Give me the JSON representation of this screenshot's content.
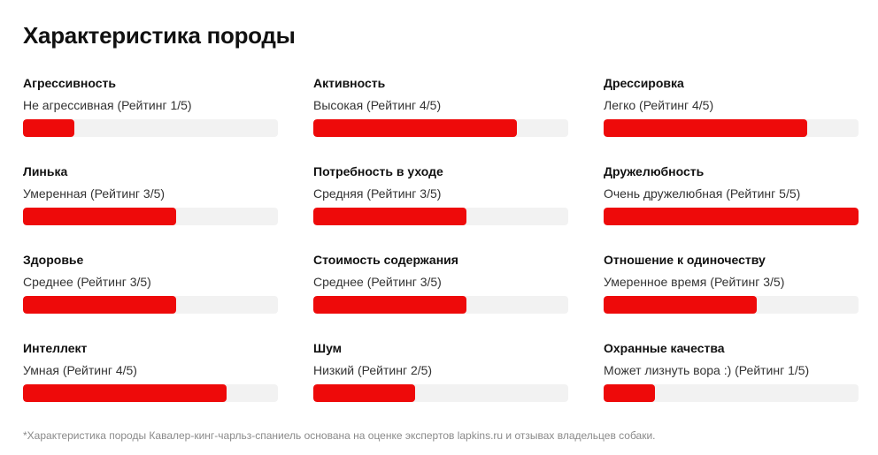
{
  "title": "Характеристика породы",
  "colors": {
    "bar_fill": "#ee0a0a",
    "bar_track": "#f2f2f2"
  },
  "traits": [
    {
      "name": "Агрессивность",
      "desc": "Не агрессивная (Рейтинг 1/5)",
      "rating": 1,
      "max": 5
    },
    {
      "name": "Активность",
      "desc": "Высокая (Рейтинг 4/5)",
      "rating": 4,
      "max": 5
    },
    {
      "name": "Дрессировка",
      "desc": "Легко (Рейтинг 4/5)",
      "rating": 4,
      "max": 5
    },
    {
      "name": "Линька",
      "desc": "Умеренная (Рейтинг 3/5)",
      "rating": 3,
      "max": 5
    },
    {
      "name": "Потребность в уходе",
      "desc": "Средняя (Рейтинг 3/5)",
      "rating": 3,
      "max": 5
    },
    {
      "name": "Дружелюбность",
      "desc": "Очень дружелюбная (Рейтинг 5/5)",
      "rating": 5,
      "max": 5
    },
    {
      "name": "Здоровье",
      "desc": "Среднее (Рейтинг 3/5)",
      "rating": 3,
      "max": 5
    },
    {
      "name": "Стоимость содержания",
      "desc": "Среднее (Рейтинг 3/5)",
      "rating": 3,
      "max": 5
    },
    {
      "name": "Отношение к одиночеству",
      "desc": "Умеренное время (Рейтинг 3/5)",
      "rating": 3,
      "max": 5
    },
    {
      "name": "Интеллект",
      "desc": "Умная (Рейтинг 4/5)",
      "rating": 4,
      "max": 5
    },
    {
      "name": "Шум",
      "desc": "Низкий (Рейтинг 2/5)",
      "rating": 2,
      "max": 5
    },
    {
      "name": "Охранные качества",
      "desc": "Может лизнуть вора :) (Рейтинг 1/5)",
      "rating": 1,
      "max": 5
    }
  ],
  "footnote": "*Характеристика породы Кавалер-кинг-чарльз-спаниель основана на оценке экспертов lapkins.ru и отзывах владельцев собаки."
}
